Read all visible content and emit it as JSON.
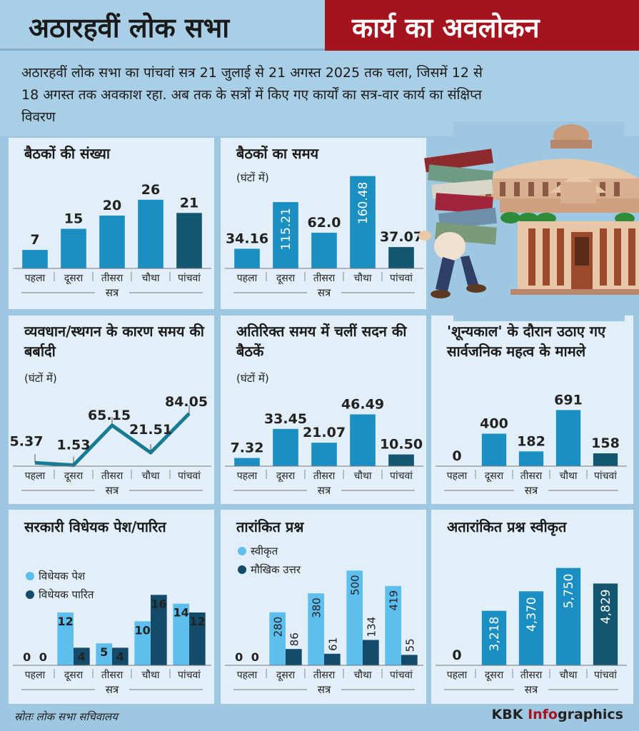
{
  "header": {
    "left_title": "अठारहवीं लोक सभा",
    "right_title": "कार्य का अवलोकन"
  },
  "intro": "अठारहवीं लोक सभा का पांचवां सत्र 21 जुलाई से 21 अगस्त 2025 तक चला, जिसमें 12 से 18 अगस्त तक अवकाश रहा. अब तक के सत्रों में किए गए कार्यों का सत्र-वार कार्य का संक्षिप्त विवरण",
  "axis_label": "सत्र",
  "footer": {
    "source": "स्रोतः लोक सभा सचिवालय",
    "brand_a": "KBK ",
    "brand_b": "Info",
    "brand_c": "graphics"
  },
  "colors": {
    "bar": "#1b8fc1",
    "bar_last": "#12566f",
    "light": "#5ebfee",
    "dark": "#154b6a",
    "line": "#177b93"
  },
  "chart_data": [
    {
      "id": "c1",
      "type": "bar",
      "title": "बैठकों की संख्या",
      "unit": "",
      "categories": [
        "पहला",
        "दूसरा",
        "तीसरा",
        "चौथा",
        "पांचवां"
      ],
      "values": [
        7,
        15,
        20,
        26,
        21
      ],
      "labels": [
        "7",
        "15",
        "20",
        "26",
        "21"
      ],
      "ylim": [
        0,
        30
      ]
    },
    {
      "id": "c2",
      "type": "bar",
      "title": "बैठकों का समय",
      "unit": "(घंटों में)",
      "categories": [
        "पहला",
        "दूसरा",
        "तीसरा",
        "चौथा",
        "पांचवां"
      ],
      "values": [
        34.16,
        115.21,
        62.0,
        160.48,
        37.07
      ],
      "labels": [
        "34.16",
        "115.21",
        "62.0",
        "160.48",
        "37.07"
      ],
      "ylim": [
        0,
        165
      ]
    },
    {
      "id": "c3",
      "type": "line",
      "title": "व्यवधान/स्थगन के कारण समय की बर्बादी",
      "unit": "(घंटों में)",
      "categories": [
        "पहला",
        "दूसरा",
        "तीसरा",
        "चौथा",
        "पांचवां"
      ],
      "values": [
        5.37,
        1.53,
        65.15,
        21.51,
        84.05
      ],
      "labels": [
        "5.37",
        "1.53",
        "65.15",
        "21.51",
        "84.05"
      ],
      "ylim": [
        0,
        90
      ]
    },
    {
      "id": "c4",
      "type": "bar",
      "title": "अतिरिक्त समय में चलीं सदन की बैठकें",
      "unit": "(घंटों में)",
      "categories": [
        "पहला",
        "दूसरा",
        "तीसरा",
        "चौथा",
        "पांचवां"
      ],
      "values": [
        7.32,
        33.45,
        21.07,
        46.49,
        10.5
      ],
      "labels": [
        "7.32",
        "33.45",
        "21.07",
        "46.49",
        "10.50"
      ],
      "ylim": [
        0,
        50
      ]
    },
    {
      "id": "c5",
      "type": "bar",
      "title": "'शून्यकाल' के दौरान उठाए गए सार्वजनिक महत्व के मामले",
      "unit": "",
      "categories": [
        "पहला",
        "दूसरा",
        "तीसरा",
        "चौथा",
        "पांचवां"
      ],
      "values": [
        0,
        400,
        182,
        691,
        158
      ],
      "labels": [
        "0",
        "400",
        "182",
        "691",
        "158"
      ],
      "ylim": [
        0,
        730
      ]
    },
    {
      "id": "c6",
      "type": "bar",
      "title": "सरकारी विधेयक पेश/पारित",
      "unit": "",
      "categories": [
        "पहला",
        "दूसरा",
        "तीसरा",
        "चौथा",
        "पांचवां"
      ],
      "series": [
        {
          "name": "विधेयक पेश",
          "values": [
            0,
            12,
            5,
            10,
            14
          ]
        },
        {
          "name": "विधेयक पारित",
          "values": [
            0,
            4,
            4,
            16,
            12
          ]
        }
      ],
      "ylim": [
        0,
        18
      ]
    },
    {
      "id": "c7",
      "type": "bar",
      "title": "तारांकित प्रश्न",
      "unit": "",
      "categories": [
        "पहला",
        "दूसरा",
        "तीसरा",
        "चौथा",
        "पांचवां"
      ],
      "series": [
        {
          "name": "स्वीकृत",
          "values": [
            0,
            280,
            380,
            500,
            419
          ]
        },
        {
          "name": "मौखिक उत्तर",
          "values": [
            0,
            86,
            61,
            134,
            55
          ]
        }
      ],
      "ylim": [
        0,
        520
      ]
    },
    {
      "id": "c8",
      "type": "bar",
      "title": "अतारांकित प्रश्न स्वीकृत",
      "unit": "",
      "categories": [
        "पहला",
        "दूसरा",
        "तीसरा",
        "चौथा",
        "पांचवां"
      ],
      "values": [
        0,
        3218,
        4370,
        5750,
        4829
      ],
      "labels": [
        "0",
        "3,218",
        "4,370",
        "5,750",
        "4,829"
      ],
      "ylim": [
        0,
        5900
      ]
    }
  ]
}
